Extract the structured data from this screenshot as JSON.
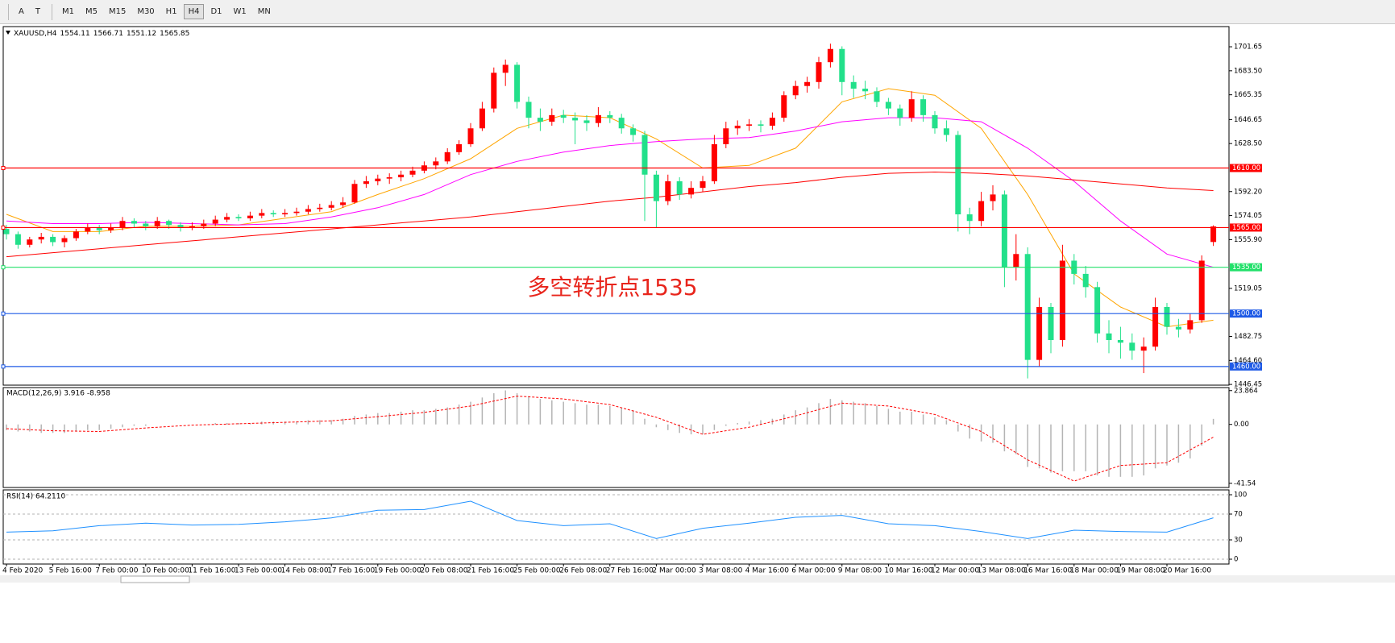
{
  "toolbar": {
    "tools": [
      "A",
      "T"
    ],
    "buttons": [
      "M1",
      "M5",
      "M15",
      "M30",
      "H1",
      "H4",
      "D1",
      "W1",
      "MN"
    ],
    "active": "H4"
  },
  "chart_data": [
    {
      "type": "candlestick",
      "title": "XAUUSD,H4",
      "categories": [
        "4 Feb 2020",
        null,
        null,
        null,
        "5 Feb 16:00",
        null,
        null,
        null,
        "7 Feb 00:00",
        null,
        null,
        null,
        "10 Feb 00:00",
        null,
        null,
        null,
        "11 Feb 16:00",
        null,
        null,
        null,
        "13 Feb 00:00",
        null,
        null,
        null,
        "14 Feb 08:00",
        null,
        null,
        null,
        "17 Feb 16:00",
        null,
        null,
        null,
        "19 Feb 00:00",
        null,
        null,
        null,
        "20 Feb 08:00",
        null,
        null,
        null,
        "21 Feb 16:00",
        null,
        null,
        null,
        "25 Feb 00:00",
        null,
        null,
        null,
        "26 Feb 08:00",
        null,
        null,
        null,
        "27 Feb 16:00",
        null,
        null,
        null,
        "2 Mar 00:00",
        null,
        null,
        null,
        "3 Mar 08:00",
        null,
        null,
        null,
        "4 Mar 16:00",
        null,
        null,
        null,
        "6 Mar 00:00",
        null,
        null,
        null,
        "9 Mar 08:00",
        null,
        null,
        null,
        "10 Mar 16:00",
        null,
        null,
        null,
        "12 Mar 00:00",
        null,
        null,
        null,
        "13 Mar 08:00",
        null,
        null,
        null,
        "16 Mar 16:00",
        null,
        null,
        null,
        "18 Mar 00:00",
        null,
        null,
        null,
        "19 Mar 08:00",
        null,
        null,
        null,
        "20 Mar 16:00",
        null,
        null,
        null,
        null
      ],
      "ohlc": [
        [
          1564,
          1567,
          1556,
          1560
        ],
        [
          1560,
          1562,
          1549,
          1552
        ],
        [
          1552,
          1558,
          1550,
          1556
        ],
        [
          1556,
          1561,
          1553,
          1558
        ],
        [
          1558,
          1560,
          1551,
          1554
        ],
        [
          1554,
          1559,
          1550,
          1557
        ],
        [
          1557,
          1564,
          1555,
          1562
        ],
        [
          1562,
          1568,
          1560,
          1565
        ],
        [
          1565,
          1567,
          1560,
          1563
        ],
        [
          1563,
          1568,
          1561,
          1565
        ],
        [
          1565,
          1573,
          1563,
          1570
        ],
        [
          1570,
          1572,
          1565,
          1568
        ],
        [
          1568,
          1570,
          1563,
          1566
        ],
        [
          1566,
          1573,
          1564,
          1570
        ],
        [
          1570,
          1571,
          1564,
          1567
        ],
        [
          1567,
          1569,
          1562,
          1565
        ],
        [
          1565,
          1569,
          1563,
          1566
        ],
        [
          1566,
          1571,
          1564,
          1568
        ],
        [
          1568,
          1574,
          1566,
          1571
        ],
        [
          1571,
          1576,
          1569,
          1573
        ],
        [
          1573,
          1575,
          1570,
          1572
        ],
        [
          1572,
          1577,
          1570,
          1574
        ],
        [
          1574,
          1579,
          1572,
          1576
        ],
        [
          1576,
          1578,
          1573,
          1575
        ],
        [
          1575,
          1579,
          1573,
          1576
        ],
        [
          1576,
          1580,
          1574,
          1577
        ],
        [
          1577,
          1582,
          1575,
          1579
        ],
        [
          1579,
          1583,
          1577,
          1580
        ],
        [
          1580,
          1585,
          1578,
          1582
        ],
        [
          1582,
          1588,
          1580,
          1584
        ],
        [
          1584,
          1601,
          1583,
          1598
        ],
        [
          1598,
          1604,
          1595,
          1600
        ],
        [
          1600,
          1605,
          1597,
          1602
        ],
        [
          1602,
          1606,
          1598,
          1603
        ],
        [
          1603,
          1608,
          1600,
          1605
        ],
        [
          1605,
          1611,
          1603,
          1608
        ],
        [
          1608,
          1615,
          1606,
          1612
        ],
        [
          1612,
          1618,
          1609,
          1615
        ],
        [
          1615,
          1625,
          1613,
          1622
        ],
        [
          1622,
          1631,
          1620,
          1628
        ],
        [
          1628,
          1644,
          1626,
          1640
        ],
        [
          1640,
          1660,
          1638,
          1655
        ],
        [
          1655,
          1686,
          1652,
          1682
        ],
        [
          1682,
          1692,
          1672,
          1688
        ],
        [
          1688,
          1690,
          1655,
          1660
        ],
        [
          1660,
          1664,
          1640,
          1648
        ],
        [
          1648,
          1655,
          1638,
          1645
        ],
        [
          1645,
          1655,
          1642,
          1650
        ],
        [
          1650,
          1654,
          1644,
          1648
        ],
        [
          1648,
          1652,
          1628,
          1646
        ],
        [
          1646,
          1650,
          1638,
          1644
        ],
        [
          1644,
          1656,
          1641,
          1650
        ],
        [
          1650,
          1653,
          1644,
          1648
        ],
        [
          1648,
          1651,
          1636,
          1640
        ],
        [
          1640,
          1643,
          1630,
          1635
        ],
        [
          1635,
          1638,
          1570,
          1605
        ],
        [
          1605,
          1608,
          1565,
          1585
        ],
        [
          1585,
          1605,
          1582,
          1600
        ],
        [
          1600,
          1603,
          1586,
          1590
        ],
        [
          1590,
          1600,
          1587,
          1595
        ],
        [
          1595,
          1604,
          1592,
          1600
        ],
        [
          1600,
          1635,
          1598,
          1628
        ],
        [
          1628,
          1645,
          1625,
          1640
        ],
        [
          1640,
          1646,
          1635,
          1642
        ],
        [
          1642,
          1647,
          1638,
          1643
        ],
        [
          1643,
          1646,
          1637,
          1642
        ],
        [
          1642,
          1652,
          1639,
          1648
        ],
        [
          1648,
          1668,
          1645,
          1665
        ],
        [
          1665,
          1676,
          1662,
          1672
        ],
        [
          1672,
          1679,
          1667,
          1675
        ],
        [
          1675,
          1694,
          1670,
          1690
        ],
        [
          1690,
          1704,
          1686,
          1700
        ],
        [
          1700,
          1702,
          1665,
          1675
        ],
        [
          1675,
          1680,
          1663,
          1670
        ],
        [
          1670,
          1676,
          1662,
          1668
        ],
        [
          1668,
          1671,
          1656,
          1660
        ],
        [
          1660,
          1663,
          1650,
          1655
        ],
        [
          1655,
          1658,
          1642,
          1648
        ],
        [
          1648,
          1668,
          1645,
          1662
        ],
        [
          1662,
          1665,
          1645,
          1650
        ],
        [
          1650,
          1653,
          1636,
          1640
        ],
        [
          1640,
          1646,
          1630,
          1635
        ],
        [
          1635,
          1638,
          1562,
          1575
        ],
        [
          1575,
          1580,
          1560,
          1570
        ],
        [
          1570,
          1592,
          1566,
          1585
        ],
        [
          1585,
          1597,
          1578,
          1590
        ],
        [
          1590,
          1593,
          1520,
          1535
        ],
        [
          1535,
          1560,
          1525,
          1545
        ],
        [
          1545,
          1550,
          1451,
          1465
        ],
        [
          1465,
          1512,
          1460,
          1505
        ],
        [
          1505,
          1508,
          1470,
          1480
        ],
        [
          1480,
          1552,
          1475,
          1540
        ],
        [
          1540,
          1545,
          1522,
          1530
        ],
        [
          1530,
          1536,
          1512,
          1520
        ],
        [
          1520,
          1524,
          1478,
          1485
        ],
        [
          1485,
          1495,
          1470,
          1480
        ],
        [
          1480,
          1490,
          1466,
          1478
        ],
        [
          1478,
          1485,
          1465,
          1472
        ],
        [
          1472,
          1482,
          1455,
          1475
        ],
        [
          1475,
          1512,
          1472,
          1505
        ],
        [
          1505,
          1508,
          1484,
          1490
        ],
        [
          1490,
          1496,
          1482,
          1488
        ],
        [
          1488,
          1500,
          1485,
          1495
        ],
        [
          1495,
          1544,
          1493,
          1540
        ],
        [
          1554.11,
          1566.71,
          1551.12,
          1565.85
        ]
      ],
      "up_color": "#ff0000",
      "down_color": "#22e08a",
      "x": [
        0,
        4,
        8,
        12,
        16,
        20,
        24,
        28,
        32,
        36,
        40,
        44,
        48,
        52,
        56,
        60,
        64,
        68,
        72,
        76,
        80,
        84,
        88,
        92,
        96,
        100,
        104
      ],
      "lines": [
        {
          "color": "#ffa500",
          "values": [
            1575,
            1562,
            1562,
            1566,
            1566,
            1567,
            1572,
            1577,
            1590,
            1602,
            1617,
            1640,
            1650,
            1648,
            1632,
            1610,
            1612,
            1625,
            1660,
            1670,
            1665,
            1640,
            1590,
            1530,
            1505,
            1490,
            1495
          ]
        },
        {
          "color": "#ff00ff",
          "values": [
            1570,
            1568,
            1568,
            1569,
            1568,
            1567,
            1568,
            1573,
            1580,
            1590,
            1605,
            1615,
            1622,
            1627,
            1630,
            1632,
            1633,
            1638,
            1645,
            1648,
            1648,
            1645,
            1625,
            1600,
            1570,
            1545,
            1535
          ]
        },
        {
          "color": "#ff0000",
          "values": [
            1543,
            1546,
            1549,
            1552,
            1555,
            1558,
            1561,
            1564,
            1567,
            1570,
            1573,
            1577,
            1581,
            1585,
            1588,
            1592,
            1596,
            1599,
            1603,
            1606,
            1607,
            1606,
            1604,
            1601,
            1598,
            1595,
            1593
          ]
        }
      ],
      "levels": [
        {
          "value": 1610,
          "label": "1610.00",
          "color": "#ff0000"
        },
        {
          "value": 1565,
          "label": "1565.00",
          "color": "#ff0000"
        },
        {
          "value": 1535,
          "label": "1535.00",
          "color": "#22e06a"
        },
        {
          "value": 1500,
          "label": "1500.00",
          "color": "#1e5ae6"
        },
        {
          "value": 1460,
          "label": "1460.00",
          "color": "#1e5ae6"
        }
      ],
      "annotation": "多空转折点1535",
      "ylim": [
        1445.9,
        1716.9
      ],
      "yticks": [
        1701.65,
        {
          "value": 1683.5,
          "label": "1683.50"
        },
        1665.35,
        1646.65,
        {
          "value": 1628.5,
          "label": "1628.50"
        },
        {
          "value": 1592.2,
          "label": "1592.20"
        },
        1574.05,
        {
          "value": 1555.9,
          "label": "1555.90"
        },
        1519.05,
        1482.75,
        {
          "value": 1464.6,
          "label": "1464.60"
        },
        1446.45
      ],
      "grid": false
    },
    {
      "type": "macd",
      "title": "MACD(12,26,9) 3.916 -8.958",
      "values": [
        -4,
        -5,
        -5,
        -6,
        -6,
        -6,
        -5,
        -4,
        -4,
        -3,
        -2,
        -1,
        -1,
        0,
        0,
        0,
        0,
        0,
        1,
        1,
        1,
        1,
        2,
        2,
        2,
        2,
        3,
        3,
        3,
        4,
        6,
        7,
        8,
        8,
        9,
        10,
        10,
        11,
        12,
        14,
        16,
        19,
        22,
        24,
        22,
        20,
        18,
        17,
        16,
        15,
        14,
        14,
        13,
        12,
        10,
        4,
        -2,
        -4,
        -6,
        -7,
        -7,
        -4,
        -1,
        1,
        2,
        3,
        4,
        7,
        10,
        12,
        15,
        18,
        17,
        16,
        15,
        13,
        11,
        9,
        9,
        7,
        5,
        3,
        -5,
        -10,
        -12,
        -13,
        -19,
        -21,
        -30,
        -31,
        -34,
        -33,
        -33,
        -33,
        -36,
        -37,
        -37,
        -37,
        -36,
        -31,
        -29,
        -27,
        -24,
        -15,
        3.916
      ],
      "color": "#b4b4b4",
      "signal": {
        "color": "#ff0000",
        "x": [
          0,
          4,
          8,
          12,
          16,
          20,
          24,
          28,
          32,
          36,
          40,
          44,
          48,
          52,
          56,
          60,
          64,
          68,
          72,
          76,
          80,
          84,
          88,
          92,
          96,
          100,
          104
        ],
        "values": [
          -3,
          -4.5,
          -5,
          -2.5,
          -0.5,
          0.5,
          1.5,
          2.5,
          5.5,
          8.5,
          13,
          20,
          18,
          14,
          5,
          -7,
          -2,
          6,
          15,
          13,
          7,
          -5,
          -25,
          -40,
          -29,
          -27,
          -8.958
        ]
      },
      "ylim": [
        -44.5,
        26
      ],
      "yticks": [
        23.864,
        {
          "value": 0,
          "label": "0.00"
        },
        -41.54
      ],
      "grid": false
    },
    {
      "type": "line",
      "title": "RSI(14) 64.2110",
      "x": [
        0,
        4,
        8,
        12,
        16,
        20,
        24,
        28,
        32,
        36,
        40,
        44,
        48,
        52,
        56,
        60,
        64,
        68,
        72,
        76,
        80,
        84,
        88,
        92,
        96,
        100,
        104
      ],
      "values": [
        42,
        44,
        52,
        56,
        53,
        54,
        58,
        64,
        76,
        77,
        90,
        60,
        52,
        55,
        32,
        48,
        56,
        65,
        68,
        55,
        52,
        43,
        32,
        45,
        43,
        42,
        64.211
      ],
      "color": "#1e90ff",
      "ylim": [
        -7.5,
        107.5
      ],
      "yticks": [
        100,
        70,
        30,
        0
      ],
      "grid": true
    }
  ]
}
